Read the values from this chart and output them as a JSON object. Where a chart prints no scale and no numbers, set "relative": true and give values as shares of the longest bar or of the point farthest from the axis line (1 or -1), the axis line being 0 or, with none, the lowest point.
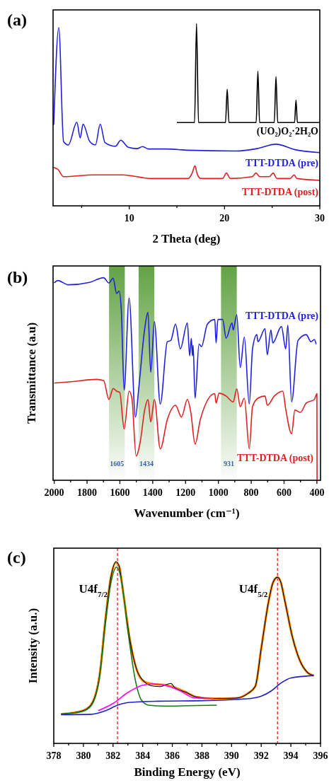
{
  "chart_data": [
    {
      "type": "line",
      "title": "(a)",
      "xlabel": "2 Theta (deg)",
      "relative": true,
      "xlim": [
        2,
        30
      ],
      "xticks": [
        {
          "value": 5,
          "label": null
        },
        10,
        {
          "value": 15,
          "label": null
        },
        20,
        {
          "value": 25,
          "label": null
        },
        30
      ],
      "series": [
        {
          "name": "(UO₂)O₂·2H₂O",
          "color": "#000000",
          "x": [
            15,
            16.85,
            17.06,
            17.27,
            20.1,
            20.28,
            20.46,
            23.32,
            23.5,
            23.68,
            25.22,
            25.4,
            25.58,
            27.35,
            27.5,
            27.65,
            30
          ],
          "values": [
            0.457,
            0.457,
            1,
            0.457,
            0.457,
            0.64,
            0.457,
            0.457,
            0.739,
            0.457,
            0.457,
            0.709,
            0.457,
            0.457,
            0.58,
            0.457,
            0.457
          ]
        },
        {
          "name": "TTT-DTDA (pre)",
          "color": "#1f1fe0",
          "x": [
            2.07,
            2.6,
            3.1,
            3.6,
            4.5,
            4.85,
            5.15,
            5.85,
            6.45,
            6.95,
            7.45,
            8.55,
            9.1,
            9.9,
            10.8,
            11.4,
            12.0,
            13.9,
            16.2,
            21.2,
            23.4,
            25.4,
            27.4,
            30
          ],
          "values": [
            0.444,
            0.978,
            0.353,
            0.334,
            0.459,
            0.373,
            0.448,
            0.353,
            0.334,
            0.448,
            0.347,
            0.327,
            0.36,
            0.321,
            0.314,
            0.325,
            0.312,
            0.312,
            0.305,
            0.301,
            0.314,
            0.338,
            0.308,
            0.292
          ]
        },
        {
          "name": "TTT-DTDA (post)",
          "color": "#e02020",
          "x": [
            2.07,
            2.5,
            3.1,
            6.3,
            7.0,
            9.3,
            12.3,
            16.2,
            16.6,
            16.9,
            17.1,
            17.5,
            19.8,
            20.2,
            20.6,
            22.9,
            23.3,
            23.7,
            24.7,
            25.1,
            25.5,
            26.9,
            27.3,
            27.6,
            30
          ],
          "values": [
            0.21,
            0.2,
            0.16,
            0.17,
            0.17,
            0.17,
            0.15,
            0.15,
            0.18,
            0.22,
            0.18,
            0.15,
            0.15,
            0.18,
            0.15,
            0.16,
            0.18,
            0.16,
            0.16,
            0.18,
            0.15,
            0.15,
            0.17,
            0.15,
            0.14
          ]
        }
      ]
    },
    {
      "type": "line",
      "title": "(b)",
      "xlabel": "Wavenumber (cm⁻¹)",
      "ylabel": "Transmittance (a.u)",
      "relative": true,
      "xlim": [
        2007,
        378
      ],
      "xticks": [
        2000,
        {
          "value": 1900,
          "label": null
        },
        1800,
        {
          "value": 1700,
          "label": null
        },
        1600,
        {
          "value": 1500,
          "label": null
        },
        1400,
        {
          "value": 1300,
          "label": null
        },
        1200,
        {
          "value": 1100,
          "label": null
        },
        1000,
        {
          "value": 900,
          "label": null
        },
        800,
        {
          "value": 700,
          "label": null
        },
        600,
        {
          "value": 500,
          "label": null
        },
        400
      ],
      "bands": [
        {
          "axis": "x",
          "from": 1666,
          "to": 1570,
          "label": "1605",
          "color": "#5a9e3a"
        },
        {
          "axis": "x",
          "from": 1486,
          "to": 1390,
          "label": "1434",
          "color": "#5a9e3a"
        },
        {
          "axis": "x",
          "from": 984,
          "to": 888,
          "label": "931",
          "color": "#5a9e3a"
        }
      ],
      "series": [
        {
          "name": "TTT-DTDA (pre)",
          "color": "#1f1fe0",
          "x": [
            2000,
            1978,
            1914,
            1785,
            1699,
            1667,
            1641,
            1620,
            1605,
            1591,
            1574,
            1544,
            1505,
            1484,
            1448,
            1429,
            1412,
            1390,
            1354,
            1311,
            1290,
            1261,
            1232,
            1189,
            1175,
            1165,
            1158,
            1154,
            1142,
            1118,
            1103,
            1067,
            1022,
            1014,
            1003,
            974,
            953,
            917,
            910,
            888,
            867,
            842,
            812,
            792,
            766,
            759,
            716,
            702,
            680,
            669,
            616,
            590,
            577,
            554,
            515,
            465,
            436,
            415,
            405
          ],
          "values": [
            0.974,
            0.986,
            0.965,
            0.977,
            1.0,
            0.974,
            0.998,
            0.922,
            0.934,
            0.835,
            0.445,
            0.899,
            0.312,
            0.463,
            0.753,
            0.829,
            0.533,
            0.783,
            0.376,
            0.684,
            0.69,
            0.771,
            0.649,
            0.777,
            0.614,
            0.701,
            0.614,
            0.666,
            0.405,
            0.672,
            0.66,
            0.771,
            0.794,
            0.678,
            0.794,
            0.794,
            0.701,
            0.777,
            0.742,
            0.817,
            0.556,
            0.707,
            0.376,
            0.649,
            0.719,
            0.684,
            0.748,
            0.62,
            0.742,
            0.678,
            0.759,
            0.649,
            0.765,
            0.387,
            0.69,
            0.719,
            0.684,
            0.695,
            0.672
          ]
        },
        {
          "name": "TTT-DTDA (post)",
          "color": "#e02020",
          "x": [
            2000,
            1900,
            1742,
            1699,
            1667,
            1641,
            1620,
            1601,
            1574,
            1544,
            1527,
            1501,
            1476,
            1448,
            1429,
            1412,
            1390,
            1354,
            1311,
            1261,
            1225,
            1189,
            1168,
            1142,
            1110,
            1022,
            1014,
            996,
            953,
            910,
            888,
            867,
            842,
            812,
            792,
            759,
            716,
            702,
            659,
            608,
            590,
            554,
            534,
            501,
            465,
            415,
            400,
            399
          ],
          "values": [
            0.48,
            0.486,
            0.498,
            0.492,
            0.399,
            0.453,
            0.44,
            0.434,
            0.253,
            0.44,
            0.405,
            0.12,
            0.19,
            0.352,
            0.399,
            0.288,
            0.399,
            0.155,
            0.3,
            0.37,
            0.312,
            0.399,
            0.335,
            0.178,
            0.3,
            0.428,
            0.381,
            0.43,
            0.416,
            0.387,
            0.451,
            0.364,
            0.405,
            0.155,
            0.364,
            0.405,
            0.416,
            0.37,
            0.416,
            0.44,
            0.352,
            0.23,
            0.347,
            0.335,
            0.381,
            0.399,
            0.428,
            0
          ]
        }
      ]
    },
    {
      "type": "line",
      "title": "(c)",
      "xlabel": "Binding Energy (eV)",
      "ylabel": "Intensity (a.u.)",
      "relative": true,
      "xlim": [
        378,
        396
      ],
      "xticks": [
        378,
        {
          "value": 379,
          "label": null
        },
        380,
        {
          "value": 381,
          "label": null
        },
        382,
        {
          "value": 383,
          "label": null
        },
        384,
        {
          "value": 385,
          "label": null
        },
        386,
        {
          "value": 387,
          "label": null
        },
        388,
        {
          "value": 389,
          "label": null
        },
        390,
        {
          "value": 391,
          "label": null
        },
        392,
        {
          "value": 393,
          "label": null
        },
        394,
        {
          "value": 395,
          "label": null
        },
        396
      ],
      "ref_lines": [
        {
          "axis": "x",
          "value": 382.3,
          "color": "#e02020",
          "line_style": "dashed"
        },
        {
          "axis": "x",
          "value": 393.1,
          "color": "#e02020",
          "line_style": "dashed"
        }
      ],
      "annotations": [
        {
          "text": "U4f$_{7/2}$",
          "x": 382.3,
          "y": 0.83
        },
        {
          "text": "U4f$_{5/2}$",
          "x": 393.1,
          "y": 0.83
        }
      ],
      "series": [
        {
          "color": "#ff8c00",
          "x": [
            378.5,
            379.9,
            380.5,
            381.1,
            381.5,
            381.85,
            382.2,
            382.4,
            382.7,
            383.1,
            383.6,
            384.1,
            384.7,
            385.5,
            386.15,
            386.9,
            387.6,
            388.7,
            390.3,
            391.1,
            391.6,
            392.0,
            392.5,
            392.8,
            393.1,
            393.3,
            393.6,
            394.1,
            394.6,
            395.1,
            395.55
          ],
          "values": [
            0.161,
            0.178,
            0.21,
            0.379,
            0.691,
            0.912,
            0.995,
            0.977,
            0.821,
            0.587,
            0.405,
            0.34,
            0.327,
            0.321,
            0.308,
            0.282,
            0.256,
            0.247,
            0.249,
            0.275,
            0.314,
            0.522,
            0.782,
            0.886,
            0.914,
            0.892,
            0.782,
            0.587,
            0.457,
            0.392,
            0.373
          ]
        },
        {
          "color": "#000000",
          "x": [
            378.5,
            379.9,
            380.5,
            381.1,
            381.5,
            381.85,
            382.2,
            382.4,
            382.7,
            383.1,
            383.6,
            384.1,
            384.7,
            385.2,
            385.5,
            385.9,
            386.15,
            386.9,
            387.6,
            388.7,
            390.3,
            391.1,
            391.6,
            392.0,
            392.5,
            392.8,
            393.1,
            393.3,
            393.6,
            394.1,
            394.6,
            395.1,
            395.55
          ],
          "values": [
            0.161,
            0.178,
            0.21,
            0.379,
            0.691,
            0.912,
            1.0,
            0.977,
            0.821,
            0.587,
            0.405,
            0.34,
            0.315,
            0.312,
            0.321,
            0.33,
            0.308,
            0.282,
            0.256,
            0.247,
            0.249,
            0.275,
            0.314,
            0.522,
            0.782,
            0.886,
            0.914,
            0.892,
            0.782,
            0.587,
            0.457,
            0.392,
            0.373
          ]
        },
        {
          "color": "#1a7a1a",
          "x": [
            378.5,
            379.9,
            380.5,
            381.1,
            381.5,
            381.85,
            382.25,
            382.6,
            383.0,
            383.5,
            383.9,
            384.4,
            385.5,
            387,
            389
          ],
          "values": [
            0.161,
            0.175,
            0.205,
            0.37,
            0.67,
            0.88,
            0.97,
            0.88,
            0.62,
            0.35,
            0.24,
            0.21,
            0.205,
            0.207,
            0.21
          ]
        },
        {
          "color": "#ff00ff",
          "x": [
            381,
            382,
            383,
            384,
            384.7,
            385.5,
            386.5,
            387.5,
            388.8
          ],
          "values": [
            0.18,
            0.22,
            0.28,
            0.32,
            0.327,
            0.32,
            0.29,
            0.25,
            0.247
          ]
        },
        {
          "color": "#1f1fd0",
          "x": [
            378.5,
            380.5,
            381.5,
            382.3,
            383,
            385,
            388,
            391,
            392,
            392.7,
            393.3,
            394,
            395.5
          ],
          "values": [
            0.158,
            0.16,
            0.18,
            0.21,
            0.225,
            0.232,
            0.235,
            0.245,
            0.26,
            0.29,
            0.33,
            0.36,
            0.373
          ]
        }
      ]
    }
  ]
}
